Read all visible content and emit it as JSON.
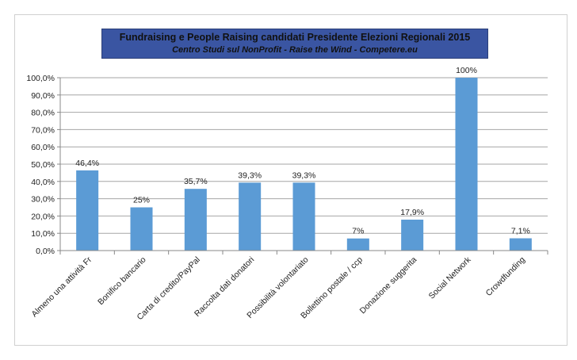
{
  "chart_data": {
    "type": "bar",
    "title": "Fundraising e People Raising candidati Presidente Elezioni Regionali 2015",
    "subtitle": "Centro Studi sul NonProfit - Raise the Wind - Competere.eu",
    "xlabel": "",
    "ylabel": "",
    "ylim": [
      0,
      100
    ],
    "yticks": [
      "0,0%",
      "10,0%",
      "20,0%",
      "30,0%",
      "40,0%",
      "50,0%",
      "60,0%",
      "70,0%",
      "80,0%",
      "90,0%",
      "100,0%"
    ],
    "categories": [
      "Almeno una attività Fr",
      "Bonifico bancario",
      "Carta di credito/PayPal",
      "Raccolta dati donatori",
      "Possibilità volontariato",
      "Bollettino postale / ccp",
      "Donazione suggerita",
      "Social Network",
      "Crowdfunding"
    ],
    "values": [
      46.4,
      25,
      35.7,
      39.3,
      39.3,
      7,
      17.9,
      100,
      7.1
    ],
    "data_labels": [
      "46,4%",
      "25%",
      "35,7%",
      "39,3%",
      "39,3%",
      "7%",
      "17,9%",
      "100%",
      "7,1%"
    ],
    "grid": true,
    "legend": "none",
    "colors": {
      "bar": "#5b9bd5",
      "title_bg": "#3a55a2",
      "grid": "#a6a6a6"
    }
  }
}
